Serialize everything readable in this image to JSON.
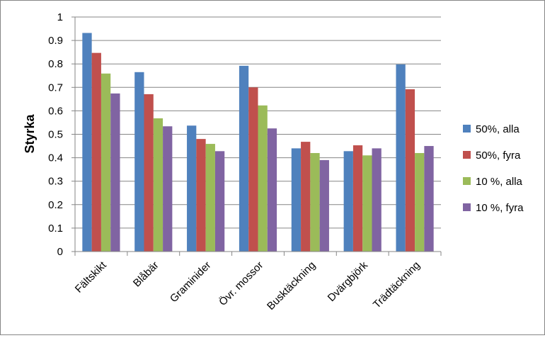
{
  "chart_data": {
    "type": "bar",
    "title": "",
    "xlabel": "",
    "ylabel": "Styrka",
    "ylim": [
      0,
      1
    ],
    "yticks": [
      "0",
      "0.1",
      "0.2",
      "0.3",
      "0.4",
      "0.5",
      "0.6",
      "0.7",
      "0.8",
      "0.9",
      "1"
    ],
    "grid": true,
    "legend_position": "right",
    "categories": [
      "Fältskikt",
      "Blåbär",
      "Graminider",
      "Övr. mossor",
      "Busktäckning",
      "Dvärgbjörk",
      "Trädtäckning"
    ],
    "series": [
      {
        "name": "50%, alla",
        "color": "#4F81BD",
        "values": [
          0.932,
          0.765,
          0.537,
          0.792,
          0.44,
          0.428,
          0.798
        ]
      },
      {
        "name": "50%, fyra",
        "color": "#C0504D",
        "values": [
          0.847,
          0.671,
          0.48,
          0.7,
          0.468,
          0.453,
          0.692
        ]
      },
      {
        "name": "10 %, alla",
        "color": "#9BBB59",
        "values": [
          0.759,
          0.568,
          0.459,
          0.623,
          0.42,
          0.41,
          0.42
        ]
      },
      {
        "name": "10 %, fyra",
        "color": "#8064A2",
        "values": [
          0.674,
          0.534,
          0.428,
          0.525,
          0.39,
          0.44,
          0.45
        ]
      }
    ]
  }
}
